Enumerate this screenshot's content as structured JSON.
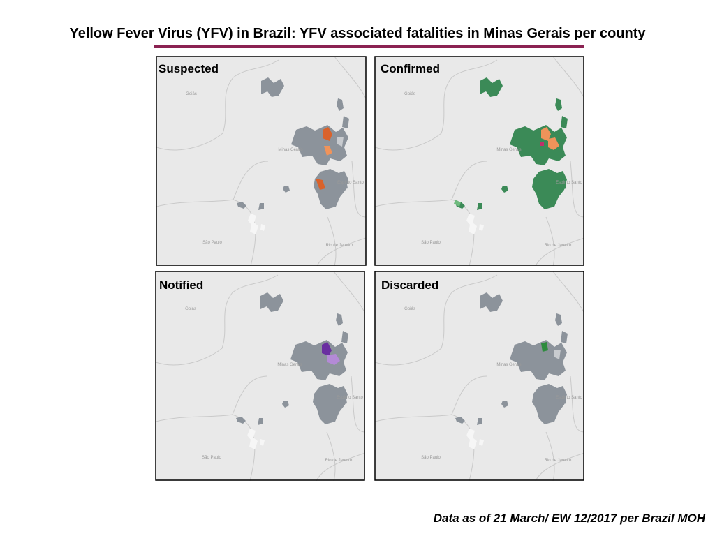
{
  "header": {
    "title": "Yellow Fever Virus (YFV) in Brazil: YFV associated fatalities in Minas Gerais per county"
  },
  "panels": [
    {
      "title": "Suspected"
    },
    {
      "title": "Confirmed"
    },
    {
      "title": "Notified"
    },
    {
      "title": "Discarded"
    }
  ],
  "map_labels": [
    "Goiás",
    "Minas Gerais",
    "Espírito Santo",
    "São Paulo",
    "Rio de Janeiro"
  ],
  "footer": {
    "note": "Data as of 21 March/ EW 12/2017 per Brazil MOH"
  }
}
